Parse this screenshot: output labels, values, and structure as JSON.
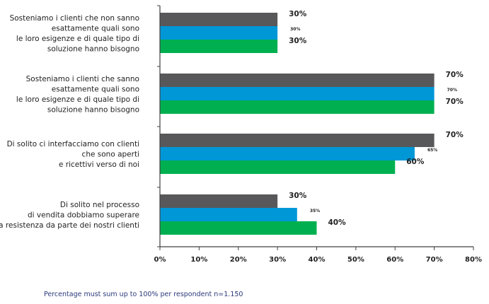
{
  "chart_data": {
    "type": "bar",
    "orientation": "horizontal",
    "categories": [
      [
        "Sosteniamo i clienti che non sanno",
        "esattamente quali sono",
        "le loro esigenze e di quale tipo di",
        "soluzione hanno bisogno"
      ],
      [
        "Sosteniamo i clienti che sanno",
        "esattamente quali sono",
        "le loro esigenze e di quale tipo di",
        "soluzione hanno bisogno"
      ],
      [
        "Di solito ci interfacciamo con clienti",
        "che sono aperti",
        "e ricettivi verso di noi"
      ],
      [
        "Di solito nel processo",
        "di vendita dobbiamo superare",
        "la resistenza da parte dei nostri clienti"
      ]
    ],
    "series": [
      {
        "values": [
          30,
          70,
          70,
          30
        ],
        "labels": [
          "30%",
          "70%",
          "70%",
          "30%"
        ],
        "color": "#58585a"
      },
      {
        "values": [
          30,
          70,
          65,
          35
        ],
        "labels": [
          "30%",
          "70%",
          "65%",
          "35%"
        ],
        "color": "#0097d7"
      },
      {
        "values": [
          30,
          70,
          60,
          40
        ],
        "labels": [
          "30%",
          "70%",
          "60%",
          "40%"
        ],
        "color": "#00b050"
      }
    ],
    "xlim": [
      0,
      80
    ],
    "xticks": [
      "0%",
      "10%",
      "20%",
      "30%",
      "40%",
      "50%",
      "60%",
      "70%",
      "80%"
    ],
    "title": "",
    "xlabel": "",
    "ylabel": "",
    "grid": false,
    "legend": "none"
  },
  "footnote": "Percentage must sum up to 100% per respondent n=1.150",
  "colors": {
    "axis": "#404040",
    "text": "#222222",
    "footnote": "#2a3a7a"
  }
}
